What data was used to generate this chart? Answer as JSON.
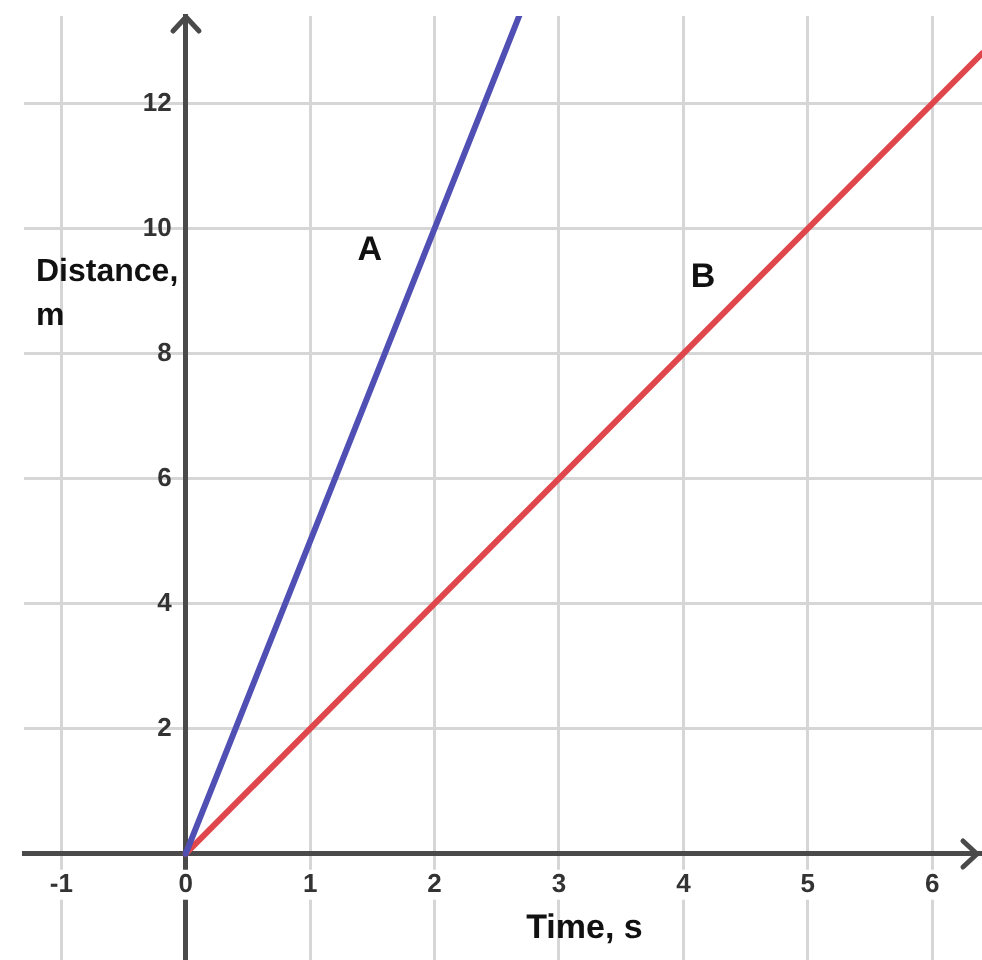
{
  "chart_data": {
    "type": "line",
    "xlabel": "Time, s",
    "ylabel": "Distance, m",
    "xlim": [
      -1.3,
      6.4
    ],
    "ylim": [
      -1.7,
      13.4
    ],
    "xticks": [
      -1,
      0,
      1,
      2,
      3,
      4,
      5,
      6
    ],
    "yticks": [
      2,
      4,
      6,
      8,
      10,
      12
    ],
    "grid": true,
    "marker": "none",
    "series": [
      {
        "name": "A",
        "color": "#5050b4",
        "x": [
          0,
          2.68
        ],
        "values": [
          0,
          13.4
        ]
      },
      {
        "name": "B",
        "color": "#e0474c",
        "x": [
          0,
          6.4
        ],
        "values": [
          0,
          12.8
        ]
      }
    ]
  }
}
